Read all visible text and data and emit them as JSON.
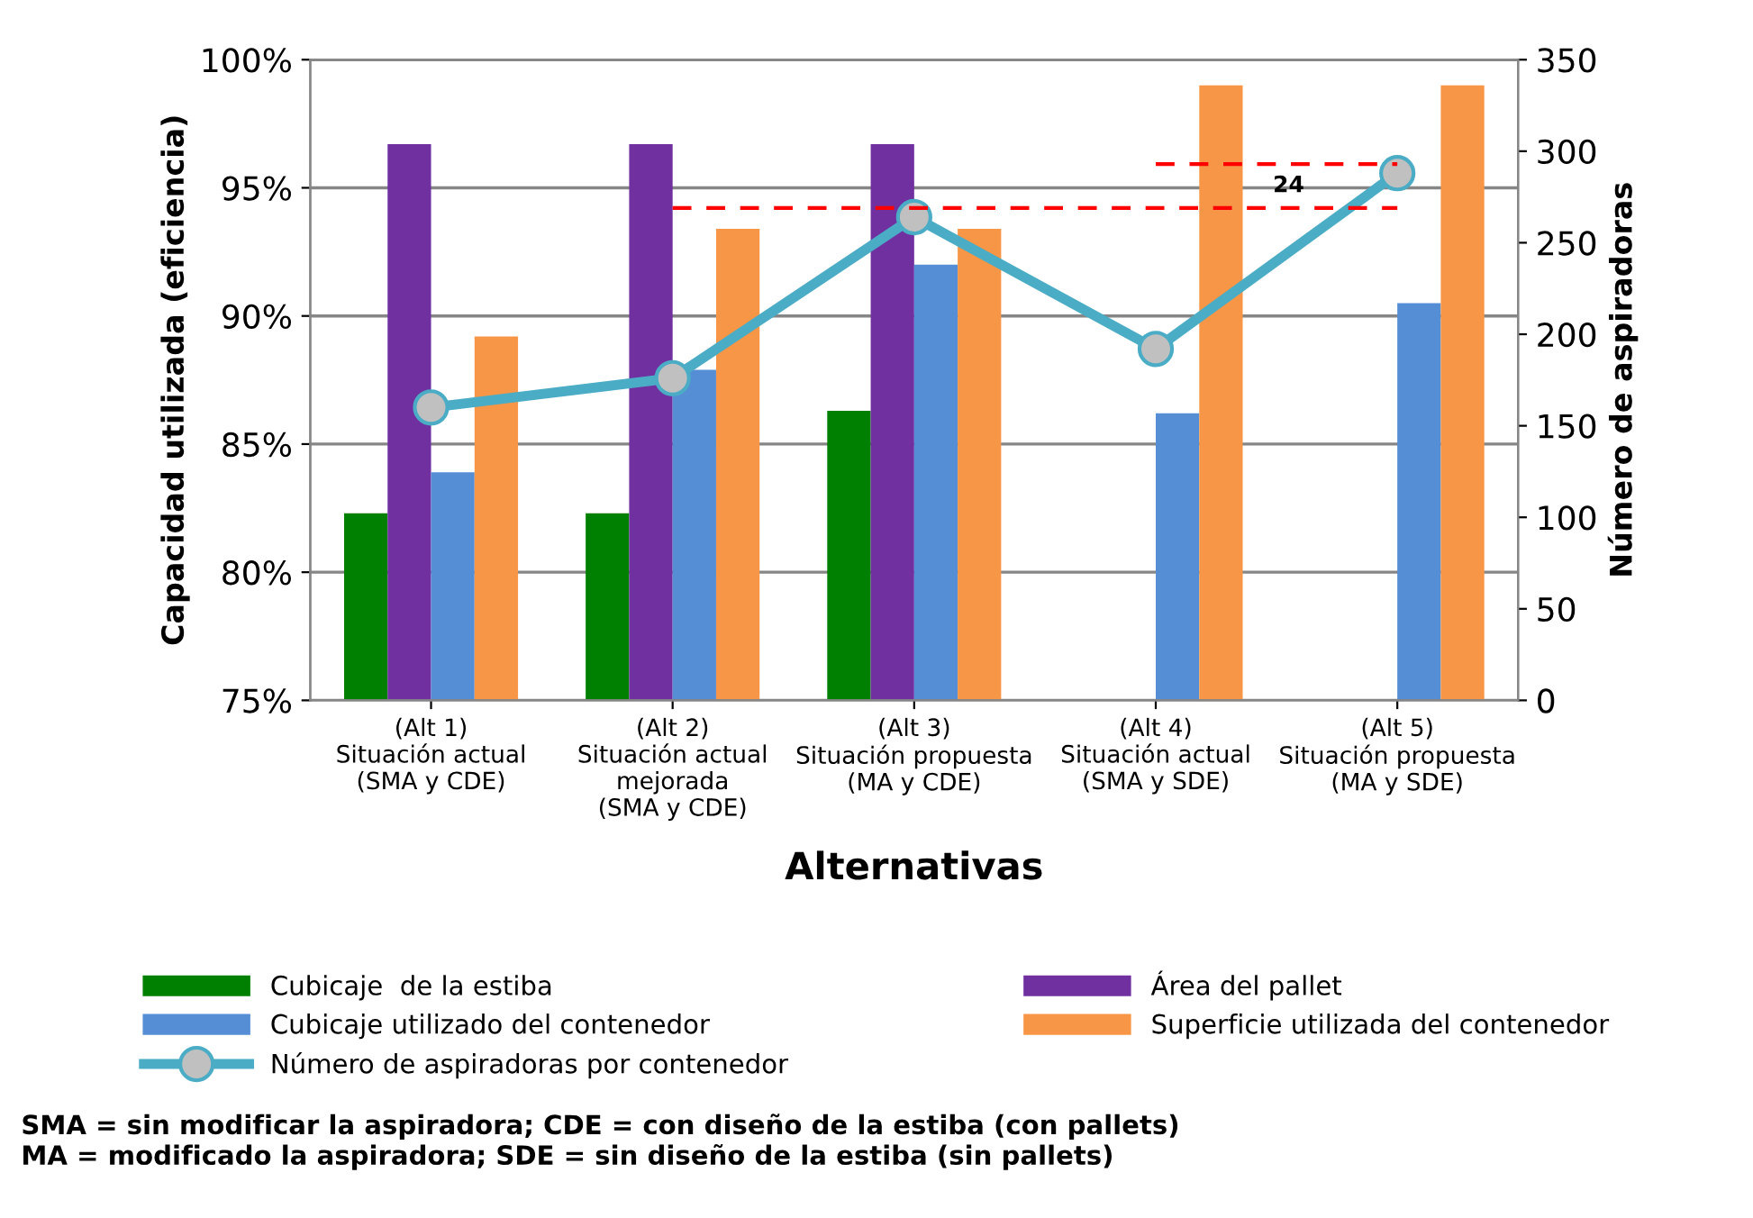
{
  "chart_data": {
    "type": "bar",
    "categories": [
      "(Alt 1)\nSituación actual\n(SMA y CDE)",
      "(Alt 2)\nSituación actual\nmejorada\n(SMA y CDE)",
      "(Alt 3)\nSituación propuesta\n(MA y CDE)",
      "(Alt 4)\nSituación actual\n(SMA y SDE)",
      "(Alt 5)\nSituación propuesta\n(MA y SDE)"
    ],
    "xlabel": "Alternativas",
    "ylabel": "Capacidad utilizada (eficiencia)",
    "y2label": "Número de aspiradoras",
    "series": [
      {
        "name": "Cubicaje  de la estiba",
        "color": "#008000",
        "values": [
          82.3,
          82.3,
          86.3,
          null,
          null
        ]
      },
      {
        "name": "Área del pallet",
        "color": "#7030a0",
        "values": [
          96.7,
          96.7,
          96.7,
          null,
          null
        ]
      },
      {
        "name": "Cubicaje utilizado del contenedor",
        "color": "#558ed5",
        "values": [
          83.9,
          87.9,
          92.0,
          86.2,
          90.5
        ]
      },
      {
        "name": "Superficie utilizada del contenedor",
        "color": "#f79646",
        "values": [
          89.2,
          93.4,
          93.4,
          99.0,
          99.0
        ]
      },
      {
        "name": "Número de aspiradoras por contenedor",
        "type": "line",
        "axis": "y2",
        "color": "#4bacc6",
        "marker": "circle",
        "values": [
          160,
          176,
          264,
          192,
          288
        ]
      },
      {
        "type": "line",
        "axis": "y2",
        "color": "#ff0000",
        "line_style": "dashed",
        "marker": "none",
        "values": [
          null,
          269,
          269,
          269,
          269
        ]
      },
      {
        "type": "line",
        "axis": "y2",
        "color": "#ff0000",
        "line_style": "dashed",
        "marker": "none",
        "values": [
          null,
          null,
          null,
          293,
          293
        ]
      }
    ],
    "ylim": [
      75,
      100
    ],
    "yticks": [
      {
        "value": 75,
        "label": "75%"
      },
      {
        "value": 80,
        "label": "80%"
      },
      {
        "value": 85,
        "label": "85%"
      },
      {
        "value": 90,
        "label": "90%"
      },
      {
        "value": 95,
        "label": "95%"
      },
      {
        "value": 100,
        "label": "100%"
      }
    ],
    "y2lim": [
      0,
      350
    ],
    "y2ticks": [
      0,
      50,
      100,
      150,
      200,
      250,
      300,
      350
    ],
    "grid": "y",
    "legend": "bottom",
    "annotations": [
      "24",
      "SMA = sin modificar la aspiradora; CDE = con diseño de la estiba (con pallets)",
      "MA = modificado la aspiradora; SDE = sin diseño de la estiba (sin pallets)"
    ]
  }
}
